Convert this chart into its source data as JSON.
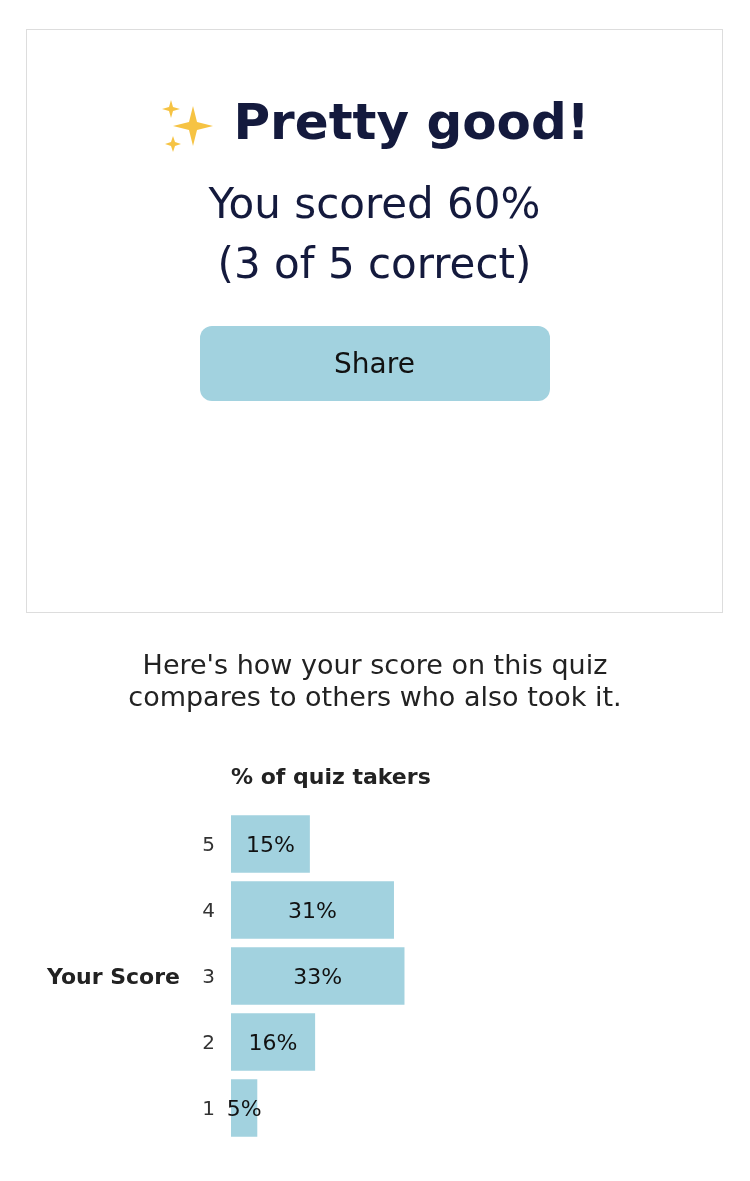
{
  "chart_data": {
    "type": "bar",
    "orientation": "horizontal",
    "title": "Pretty good!",
    "subtitle": "You scored 60%\n(3 of 5 correct)",
    "annotations": [
      "Share",
      "Here's how your score on this quiz compares to others who also took it."
    ],
    "xlabel": "% of quiz takers",
    "ylabel": "Your Score",
    "categories": [
      "5",
      "4",
      "3",
      "2",
      "1"
    ],
    "values": [
      15,
      31,
      33,
      16,
      5
    ],
    "value_labels": [
      "15%",
      "31%",
      "33%",
      "16%",
      "5%"
    ],
    "color": "#a2d2df"
  }
}
